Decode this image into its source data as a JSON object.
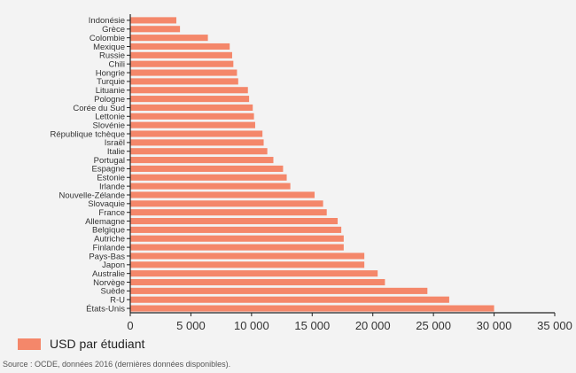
{
  "chart_data": {
    "type": "bar",
    "orientation": "horizontal",
    "categories": [
      "Indonésie",
      "Grèce",
      "Colombie",
      "Mexique",
      "Russie",
      "Chili",
      "Hongrie",
      "Turquie",
      "Lituanie",
      "Pologne",
      "Corée du Sud",
      "Lettonie",
      "Slovénie",
      "République tchèque",
      "Israël",
      "Italie",
      "Portugal",
      "Espagne",
      "Estonie",
      "Irlande",
      "Nouvelle-Zélande",
      "Slovaquie",
      "France",
      "Allemagne",
      "Belgique",
      "Autriche",
      "Finlande",
      "Pays-Bas",
      "Japon",
      "Australie",
      "Norvège",
      "Suède",
      "R-U",
      "États-Unis"
    ],
    "series": [
      {
        "name": "USD par étudiant",
        "values": [
          3800,
          4100,
          6400,
          8200,
          8400,
          8500,
          8800,
          8900,
          9700,
          9800,
          10100,
          10200,
          10300,
          10900,
          11000,
          11300,
          11800,
          12600,
          12900,
          13200,
          15200,
          15900,
          16200,
          17100,
          17400,
          17600,
          17600,
          19300,
          19300,
          20400,
          21000,
          24500,
          26300,
          30000
        ]
      }
    ],
    "xlim": [
      0,
      35000
    ],
    "xticks": [
      0,
      5000,
      10000,
      15000,
      20000,
      25000,
      30000,
      35000
    ],
    "xtick_labels": [
      "0",
      "5 000",
      "10 000",
      "15 000",
      "20 000",
      "25 000",
      "30 000",
      "35 000"
    ],
    "legend_position": "bottom-left",
    "grid": false
  },
  "colors": {
    "bar": "#f4876a",
    "axis": "#222222"
  },
  "source_note": "Source : OCDE, données 2016 (dernières données disponibles)."
}
